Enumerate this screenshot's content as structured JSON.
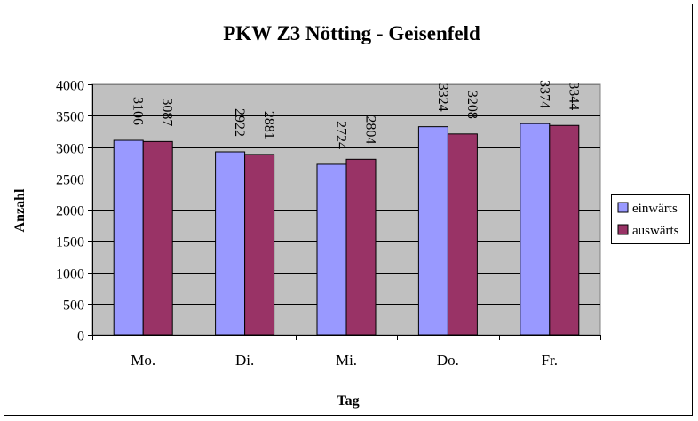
{
  "chart_data": {
    "type": "bar",
    "title": "PKW Z3 Nötting - Geisenfeld",
    "xlabel": "Tag",
    "ylabel": "Anzahl",
    "categories": [
      "Mo.",
      "Di.",
      "Mi.",
      "Do.",
      "Fr."
    ],
    "series": [
      {
        "name": "einwärts",
        "values": [
          3106,
          2922,
          2724,
          3324,
          3374
        ],
        "color": "#9999ff"
      },
      {
        "name": "auswärts",
        "values": [
          3087,
          2881,
          2804,
          3208,
          3344
        ],
        "color": "#993366"
      }
    ],
    "ylim": [
      0,
      4000
    ],
    "yticks": [
      0,
      500,
      1000,
      1500,
      2000,
      2500,
      3000,
      3500,
      4000
    ],
    "grid": true,
    "plot_background": "#c0c0c0",
    "legend": "right"
  }
}
